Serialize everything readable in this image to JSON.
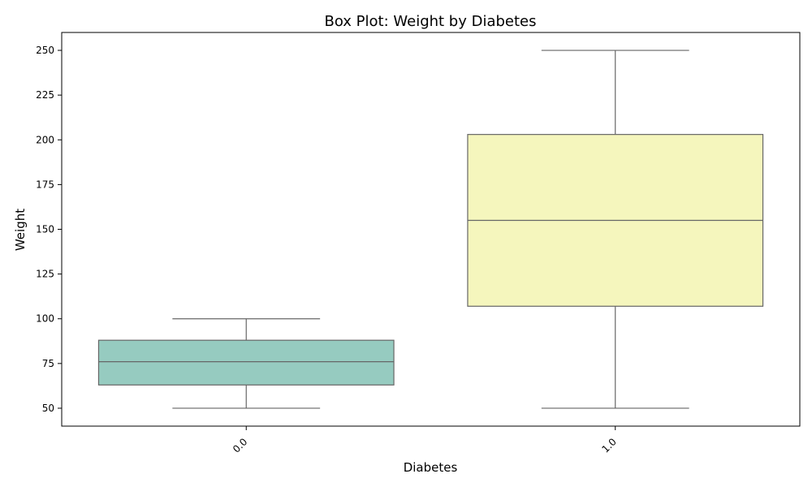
{
  "chart_data": {
    "type": "box",
    "title": "Box Plot: Weight by Diabetes",
    "xlabel": "Diabetes",
    "ylabel": "Weight",
    "categories": [
      "0.0",
      "1.0"
    ],
    "yticks": [
      50,
      75,
      100,
      125,
      150,
      175,
      200,
      225,
      250
    ],
    "ylim": [
      40,
      260
    ],
    "grid": false,
    "boxes": [
      {
        "category": "0.0",
        "whisker_low": 50,
        "q1": 63,
        "median": 76,
        "q3": 88,
        "whisker_high": 100,
        "color": "#96CBC0"
      },
      {
        "category": "1.0",
        "whisker_low": 50,
        "q1": 107,
        "median": 155,
        "q3": 203,
        "whisker_high": 250,
        "color": "#F5F6BD"
      }
    ],
    "line_color": "#666666"
  }
}
